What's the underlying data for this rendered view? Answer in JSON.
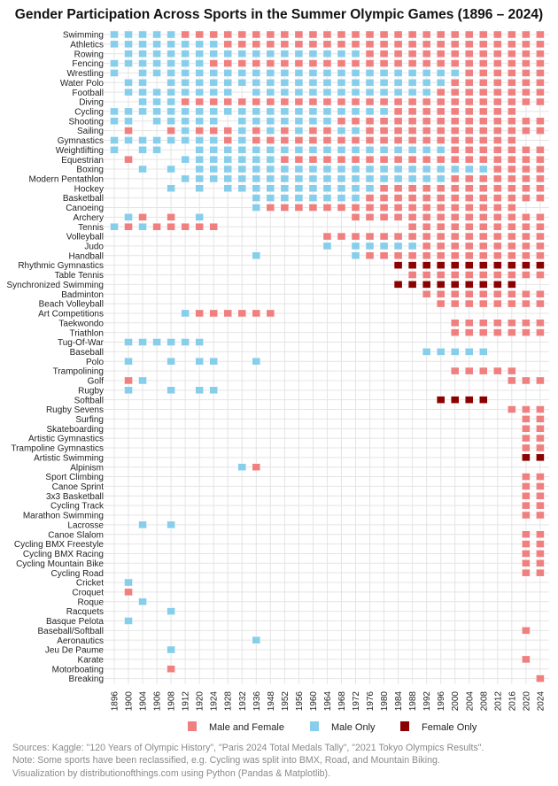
{
  "chart_data": {
    "type": "heatmap",
    "title": "Gender Participation Across Sports in the Summer Olympic Games (1896 – 2024)",
    "years": [
      "1896",
      "1900",
      "1904",
      "1906",
      "1908",
      "1912",
      "1920",
      "1924",
      "1928",
      "1932",
      "1936",
      "1948",
      "1952",
      "1956",
      "1960",
      "1964",
      "1968",
      "1972",
      "1976",
      "1980",
      "1984",
      "1988",
      "1992",
      "1996",
      "2000",
      "2004",
      "2008",
      "2012",
      "2016",
      "2020",
      "2024"
    ],
    "status_codes": {
      "B": "Male and Female",
      "M": "Male Only",
      "F": "Female Only",
      ".": ""
    },
    "legend": [
      {
        "code": "B",
        "label": "Male and Female",
        "color": "#f08080"
      },
      {
        "code": "M",
        "label": "Male Only",
        "color": "#87ceeb"
      },
      {
        "code": "F",
        "label": "Female Only",
        "color": "#8b0000"
      }
    ],
    "legend_position": "bottom",
    "grid": true,
    "sports": [
      {
        "name": "Swimming",
        "status": "MMMMMBBBBBBBBBBBBBBBBBBBBBBBBBB"
      },
      {
        "name": "Athletics",
        "status": "MMMMMMMMBBBBBBBBBBBBBBBBBBBBBBB"
      },
      {
        "name": "Rowing",
        "status": ".MMMMMMMMMMMMMMMMMBBBBBBBBBBBBB"
      },
      {
        "name": "Fencing",
        "status": "MMMMMMMBBBBBBBBBBBBBBBBBBBBBBBB"
      },
      {
        "name": "Wrestling",
        "status": "M.MMMMMMMMMMMMMMMMMMMMMMMBBBBBB"
      },
      {
        "name": "Water Polo",
        "status": ".MM.MMMMMMMMMMMMMMMMMMMMBBBBBBB"
      },
      {
        "name": "Football",
        "status": ".MMMMMMMM.MMMMMMMMMMMMMBBBBBBBB"
      },
      {
        "name": "Diving",
        "status": "..MMMBBBBBBBBBBBBBBBBBBBBBBBBBB"
      },
      {
        "name": "Cycling",
        "status": "MMMMMMMMMMMMMMMMMMMMBBBBBBBBB.."
      },
      {
        "name": "Shooting",
        "status": "MM.MMMMM.MMMMMMMBBBBBBBBBBBBBBB"
      },
      {
        "name": "Sailing",
        "status": ".B..BMBBBMBMBMBBMMBBBBBBBBBBBBB"
      },
      {
        "name": "Gymnastics",
        "status": "MMMMMMMMBMBBBBBBBBBBBBBBBBBBB.."
      },
      {
        "name": "Weightlifting",
        "status": "M.MM..MMMMMMMMMMMMMMMMMMBBBBBBB"
      },
      {
        "name": "Equestrian",
        "status": ".B...MMMMMMMBBBBBBBBBBBBBBBBBBB"
      },
      {
        "name": "Boxing",
        "status": "..M.M.MMMMMMMMMMMMMMMMMMMMMBBBB"
      },
      {
        "name": "Modern Pentathlon",
        "status": ".....MMMMMMMMMMMMMMMMMMMBBBBBBB"
      },
      {
        "name": "Hockey",
        "status": "....M.M.MMMMMMMMMMMBBBBBBBBBBBB"
      },
      {
        "name": "Basketball",
        "status": "..........MMMMMMMMBBBBBBBBBBBBB"
      },
      {
        "name": "Canoeing",
        "status": "..........MBBBBBBBBBBBBBBBBBB.."
      },
      {
        "name": "Archery",
        "status": ".MB.B.M..........BBBBBBBBBBBBBB"
      },
      {
        "name": "Tennis",
        "status": "MBMBBBBB.............BBBBBBBBBB"
      },
      {
        "name": "Volleyball",
        "status": "...............BBBBBBBBBBBBBBBB"
      },
      {
        "name": "Judo",
        "status": "...............M.MMMMMBBBBBBBBB"
      },
      {
        "name": "Handball",
        "status": "..........M......MBBBBBBBBBBBBB"
      },
      {
        "name": "Rhythmic Gymnastics",
        "status": "....................FFFFFFFFFFF"
      },
      {
        "name": "Table Tennis",
        "status": ".....................BBBBBBBBBB"
      },
      {
        "name": "Synchronized Swimming",
        "status": "....................FFFFFFFFF.."
      },
      {
        "name": "Badminton",
        "status": "......................BBBBBBBBB"
      },
      {
        "name": "Beach Volleyball",
        "status": ".......................BBBBBBBB"
      },
      {
        "name": "Art Competitions",
        "status": ".....MBBBBBB..................."
      },
      {
        "name": "Taekwondo",
        "status": "........................BBBBBBB"
      },
      {
        "name": "Triathlon",
        "status": "........................BBBBBBB"
      },
      {
        "name": "Tug-Of-War",
        "status": ".MMMMMM........................"
      },
      {
        "name": "Baseball",
        "status": "......................MMMMM...."
      },
      {
        "name": "Polo",
        "status": ".M..M.MM..M...................."
      },
      {
        "name": "Trampolining",
        "status": "........................BBBBB.."
      },
      {
        "name": "Golf",
        "status": ".BM.........................BBB"
      },
      {
        "name": "Rugby",
        "status": ".M..M.MM......................."
      },
      {
        "name": "Softball",
        "status": ".......................FFFF...."
      },
      {
        "name": "Rugby Sevens",
        "status": "............................BBB"
      },
      {
        "name": "Surfing",
        "status": ".............................BB"
      },
      {
        "name": "Skateboarding",
        "status": ".............................BB"
      },
      {
        "name": "Artistic Gymnastics",
        "status": ".............................BB"
      },
      {
        "name": "Trampoline Gymnastics",
        "status": ".............................BB"
      },
      {
        "name": "Artistic Swimming",
        "status": ".............................FF"
      },
      {
        "name": "Alpinism",
        "status": ".........MB...................."
      },
      {
        "name": "Sport Climbing",
        "status": ".............................BB"
      },
      {
        "name": "Canoe Sprint",
        "status": ".............................BB"
      },
      {
        "name": "3x3 Basketball",
        "status": ".............................BB"
      },
      {
        "name": "Cycling Track",
        "status": ".............................BB"
      },
      {
        "name": "Marathon Swimming",
        "status": ".............................BB"
      },
      {
        "name": "Lacrosse",
        "status": "..M.M.........................."
      },
      {
        "name": "Canoe Slalom",
        "status": ".............................BB"
      },
      {
        "name": "Cycling BMX Freestyle",
        "status": ".............................BB"
      },
      {
        "name": "Cycling BMX Racing",
        "status": ".............................BB"
      },
      {
        "name": "Cycling Mountain Bike",
        "status": ".............................BB"
      },
      {
        "name": "Cycling Road",
        "status": ".............................BB"
      },
      {
        "name": "Cricket",
        "status": ".M............................."
      },
      {
        "name": "Croquet",
        "status": ".B............................."
      },
      {
        "name": "Roque",
        "status": "..M............................"
      },
      {
        "name": "Racquets",
        "status": "....M.........................."
      },
      {
        "name": "Basque Pelota",
        "status": ".M............................."
      },
      {
        "name": "Baseball/Softball",
        "status": ".............................B."
      },
      {
        "name": "Aeronautics",
        "status": "..........M...................."
      },
      {
        "name": "Jeu De Paume",
        "status": "....M.........................."
      },
      {
        "name": "Karate",
        "status": ".............................B."
      },
      {
        "name": "Motorboating",
        "status": "....B.........................."
      },
      {
        "name": "Breaking",
        "status": "..............................B"
      }
    ]
  },
  "footer": {
    "sources": "Sources: Kaggle: \"120 Years of Olympic History\", \"Paris 2024 Total Medals Tally\", \"2021 Tokyo Olympics Results\".",
    "note": "Note: Some sports have been reclassified, e.g. Cycling was split into BMX, Road, and Mountain Biking.",
    "credit": "Visualization by distributionofthings.com using Python (Pandas & Matplotlib)."
  }
}
